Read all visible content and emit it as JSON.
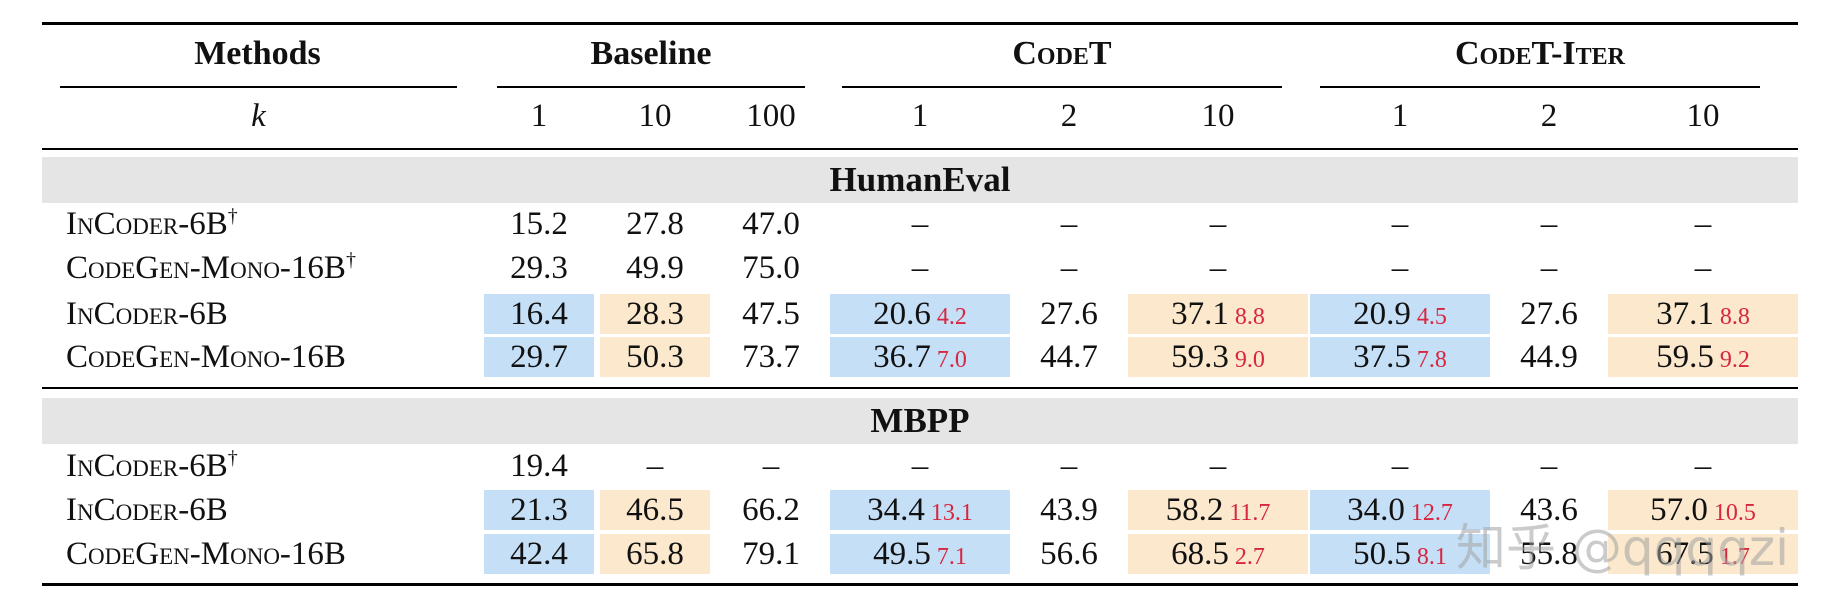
{
  "header": {
    "methods": "Methods",
    "baseline": "Baseline",
    "codet": "CodeT",
    "codet_iter": "CodeT-Iter",
    "k_label": "k",
    "k_values": [
      "1",
      "10",
      "100",
      "1",
      "2",
      "10",
      "1",
      "2",
      "10"
    ]
  },
  "sections": [
    {
      "title": "HumanEval",
      "rows": [
        {
          "method": "InCoder-6B",
          "dagger": "†",
          "cells": [
            {
              "v": "15.2"
            },
            {
              "v": "27.8"
            },
            {
              "v": "47.0"
            },
            {
              "v": "–"
            },
            {
              "v": "–"
            },
            {
              "v": "–"
            },
            {
              "v": "–"
            },
            {
              "v": "–"
            },
            {
              "v": "–"
            }
          ]
        },
        {
          "method": "CodeGen-Mono-16B",
          "dagger": "†",
          "cells": [
            {
              "v": "29.3"
            },
            {
              "v": "49.9"
            },
            {
              "v": "75.0"
            },
            {
              "v": "–"
            },
            {
              "v": "–"
            },
            {
              "v": "–"
            },
            {
              "v": "–"
            },
            {
              "v": "–"
            },
            {
              "v": "–"
            }
          ]
        },
        {
          "method": "InCoder-6B",
          "dagger": "",
          "cells": [
            {
              "v": "16.4",
              "hl": "blue"
            },
            {
              "v": "28.3",
              "hl": "orange"
            },
            {
              "v": "47.5"
            },
            {
              "v": "20.6",
              "d": "4.2",
              "hl": "blue"
            },
            {
              "v": "27.6"
            },
            {
              "v": "37.1",
              "d": "8.8",
              "hl": "orange"
            },
            {
              "v": "20.9",
              "d": "4.5",
              "hl": "blue"
            },
            {
              "v": "27.6"
            },
            {
              "v": "37.1",
              "d": "8.8",
              "hl": "orange"
            }
          ]
        },
        {
          "method": "CodeGen-Mono-16B",
          "dagger": "",
          "cells": [
            {
              "v": "29.7",
              "hl": "blue"
            },
            {
              "v": "50.3",
              "hl": "orange"
            },
            {
              "v": "73.7"
            },
            {
              "v": "36.7",
              "d": "7.0",
              "hl": "blue"
            },
            {
              "v": "44.7"
            },
            {
              "v": "59.3",
              "d": "9.0",
              "hl": "orange"
            },
            {
              "v": "37.5",
              "d": "7.8",
              "hl": "blue"
            },
            {
              "v": "44.9"
            },
            {
              "v": "59.5",
              "d": "9.2",
              "hl": "orange"
            }
          ]
        }
      ]
    },
    {
      "title": "MBPP",
      "rows": [
        {
          "method": "InCoder-6B",
          "dagger": "†",
          "cells": [
            {
              "v": "19.4"
            },
            {
              "v": "–"
            },
            {
              "v": "–"
            },
            {
              "v": "–"
            },
            {
              "v": "–"
            },
            {
              "v": "–"
            },
            {
              "v": "–"
            },
            {
              "v": "–"
            },
            {
              "v": "–"
            }
          ]
        },
        {
          "method": "InCoder-6B",
          "dagger": "",
          "cells": [
            {
              "v": "21.3",
              "hl": "blue"
            },
            {
              "v": "46.5",
              "hl": "orange"
            },
            {
              "v": "66.2"
            },
            {
              "v": "34.4",
              "d": "13.1",
              "hl": "blue"
            },
            {
              "v": "43.9"
            },
            {
              "v": "58.2",
              "d": "11.7",
              "hl": "orange"
            },
            {
              "v": "34.0",
              "d": "12.7",
              "hl": "blue"
            },
            {
              "v": "43.6"
            },
            {
              "v": "57.0",
              "d": "10.5",
              "hl": "orange"
            }
          ]
        },
        {
          "method": "CodeGen-Mono-16B",
          "dagger": "",
          "cells": [
            {
              "v": "42.4",
              "hl": "blue"
            },
            {
              "v": "65.8",
              "hl": "orange"
            },
            {
              "v": "79.1"
            },
            {
              "v": "49.5",
              "d": "7.1",
              "hl": "blue"
            },
            {
              "v": "56.6"
            },
            {
              "v": "68.5",
              "d": "2.7",
              "hl": "orange"
            },
            {
              "v": "50.5",
              "d": "8.1",
              "hl": "blue"
            },
            {
              "v": "55.8"
            },
            {
              "v": "67.5",
              "d": "1.7",
              "hl": "orange"
            }
          ]
        }
      ]
    }
  ],
  "watermark": "知乎 @qqqqzi",
  "colors": {
    "blue_highlight": "#c5dff7",
    "orange_highlight": "#fbe8cd",
    "delta_red": "#d7263d",
    "section_band": "#e5e5e5"
  }
}
